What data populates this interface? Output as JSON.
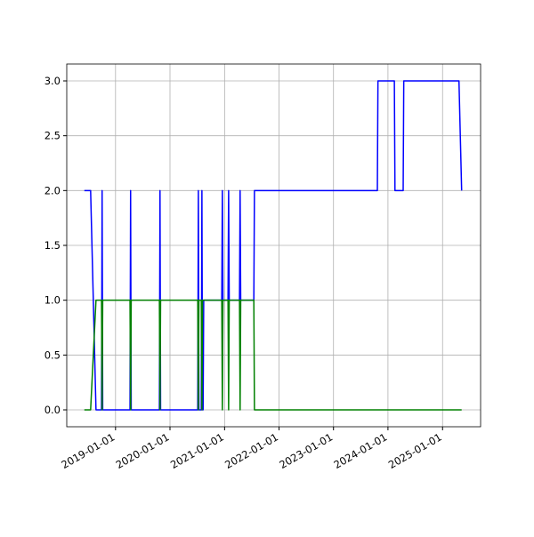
{
  "chart_data": {
    "type": "line",
    "x": [
      "2018-06-06",
      "2018-07-18",
      "2018-08-23",
      "2018-09-29",
      "2018-10-03",
      "2018-10-07",
      "2019-04-08",
      "2019-04-12",
      "2019-04-16",
      "2019-10-22",
      "2019-10-26",
      "2019-10-30",
      "2020-07-05",
      "2020-07-09",
      "2020-07-13",
      "2020-07-29",
      "2020-08-02",
      "2020-08-06",
      "2020-08-10",
      "2020-08-14",
      "2020-12-13",
      "2020-12-17",
      "2020-12-21",
      "2021-01-24",
      "2021-01-28",
      "2021-02-01",
      "2021-04-11",
      "2021-04-15",
      "2021-04-19",
      "2021-07-16",
      "2021-07-20",
      "2023-10-22",
      "2023-10-26",
      "2024-02-13",
      "2024-02-17",
      "2024-04-12",
      "2024-04-16",
      "2025-04-21",
      "2025-05-09"
    ],
    "series": [
      {
        "color": "#0000ff",
        "values": [
          2,
          2,
          0,
          0,
          2,
          0,
          0,
          2,
          0,
          0,
          2,
          0,
          0,
          2,
          0,
          0,
          2,
          0,
          0,
          1,
          1,
          2,
          1,
          1,
          2,
          1,
          1,
          2,
          1,
          1,
          2,
          2,
          3,
          3,
          2,
          2,
          3,
          3,
          2
        ]
      },
      {
        "color": "#008000",
        "values": [
          0,
          0,
          1,
          1,
          0,
          1,
          1,
          0,
          1,
          1,
          0,
          1,
          1,
          0,
          1,
          1,
          0,
          1,
          1,
          1,
          1,
          0,
          1,
          1,
          0,
          1,
          1,
          0,
          1,
          1,
          0,
          0,
          0,
          0,
          0,
          0,
          0,
          0,
          0
        ]
      }
    ],
    "xlim": [
      "2018-02-08",
      "2025-09-13"
    ],
    "xticks": [
      "2019-01-01",
      "2020-01-01",
      "2021-01-01",
      "2022-01-01",
      "2023-01-01",
      "2024-01-01",
      "2025-01-01"
    ],
    "ylim": [
      -0.154,
      3.154
    ],
    "yticks": [
      {
        "value": 0,
        "label": "0.0"
      },
      0.5,
      {
        "value": 1,
        "label": "1.0"
      },
      1.5,
      {
        "value": 2,
        "label": "2.0"
      },
      2.5,
      {
        "value": 3,
        "label": "3.0"
      }
    ],
    "grid": true
  }
}
